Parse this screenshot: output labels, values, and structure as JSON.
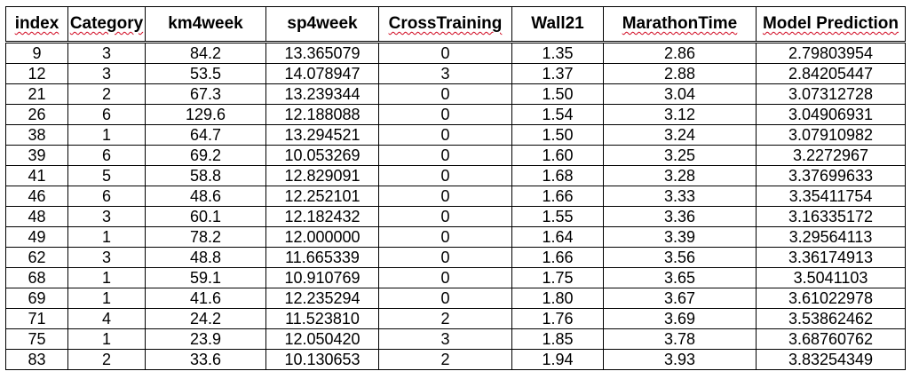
{
  "table": {
    "headers": [
      {
        "label": "index",
        "spell": true
      },
      {
        "label": "Category",
        "spell": true
      },
      {
        "label": "km4week",
        "spell": false
      },
      {
        "label": "sp4week",
        "spell": false
      },
      {
        "label": "CrossTraining",
        "spell": true
      },
      {
        "label": "Wall21",
        "spell": false
      },
      {
        "label": "MarathonTime",
        "spell": true
      },
      {
        "label": "Model Prediction",
        "spell": true
      }
    ],
    "rows": [
      [
        "9",
        "3",
        "84.2",
        "13.365079",
        "0",
        "1.35",
        "2.86",
        "2.79803954"
      ],
      [
        "12",
        "3",
        "53.5",
        "14.078947",
        "3",
        "1.37",
        "2.88",
        "2.84205447"
      ],
      [
        "21",
        "2",
        "67.3",
        "13.239344",
        "0",
        "1.50",
        "3.04",
        "3.07312728"
      ],
      [
        "26",
        "6",
        "129.6",
        "12.188088",
        "0",
        "1.54",
        "3.12",
        "3.04906931"
      ],
      [
        "38",
        "1",
        "64.7",
        "13.294521",
        "0",
        "1.50",
        "3.24",
        "3.07910982"
      ],
      [
        "39",
        "6",
        "69.2",
        "10.053269",
        "0",
        "1.60",
        "3.25",
        "3.2272967"
      ],
      [
        "41",
        "5",
        "58.8",
        "12.829091",
        "0",
        "1.68",
        "3.28",
        "3.37699633"
      ],
      [
        "46",
        "6",
        "48.6",
        "12.252101",
        "0",
        "1.66",
        "3.33",
        "3.35411754"
      ],
      [
        "48",
        "3",
        "60.1",
        "12.182432",
        "0",
        "1.55",
        "3.36",
        "3.16335172"
      ],
      [
        "49",
        "1",
        "78.2",
        "12.000000",
        "0",
        "1.64",
        "3.39",
        "3.29564113"
      ],
      [
        "62",
        "3",
        "48.8",
        "11.665339",
        "0",
        "1.66",
        "3.56",
        "3.36174913"
      ],
      [
        "68",
        "1",
        "59.1",
        "10.910769",
        "0",
        "1.75",
        "3.65",
        "3.5041103"
      ],
      [
        "69",
        "1",
        "41.6",
        "12.235294",
        "0",
        "1.80",
        "3.67",
        "3.61022978"
      ],
      [
        "71",
        "4",
        "24.2",
        "11.523810",
        "2",
        "1.76",
        "3.69",
        "3.53862462"
      ],
      [
        "75",
        "1",
        "23.9",
        "12.050420",
        "3",
        "1.85",
        "3.78",
        "3.68760762"
      ],
      [
        "83",
        "2",
        "33.6",
        "10.130653",
        "2",
        "1.94",
        "3.93",
        "3.83254349"
      ]
    ]
  },
  "colors": {
    "grid": "#000000",
    "spellcheck_underline": "#d0021b"
  }
}
